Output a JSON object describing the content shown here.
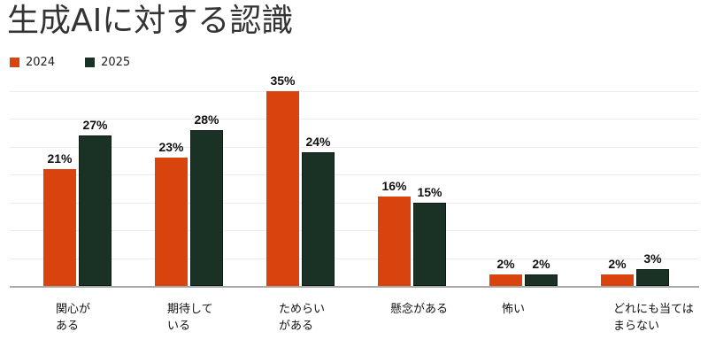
{
  "title": "生成AIに対する認識",
  "legend": [
    {
      "label": "2024",
      "color": "#d9430d"
    },
    {
      "label": "2025",
      "color": "#1a3226"
    }
  ],
  "chart_data": {
    "type": "bar",
    "title": "生成AIに対する認識",
    "xlabel": "",
    "ylabel": "",
    "ylim": [
      0,
      35
    ],
    "grid": true,
    "grid_step": 5,
    "legend_position": "top-left",
    "categories": [
      "関心がある",
      "期待している",
      "ためらいがある",
      "懸念がある",
      "怖い",
      "どれにも当てはまらない"
    ],
    "category_labels": [
      [
        "関心が",
        "ある"
      ],
      [
        "期待して",
        "いる"
      ],
      [
        "ためらい",
        "がある"
      ],
      [
        "懸念がある"
      ],
      [
        "怖い"
      ],
      [
        "どれにも当ては",
        "まらない"
      ]
    ],
    "series": [
      {
        "name": "2024",
        "color": "#d9430d",
        "values": [
          21,
          23,
          35,
          16,
          2,
          2
        ]
      },
      {
        "name": "2025",
        "color": "#1a3226",
        "values": [
          27,
          28,
          24,
          15,
          2,
          3
        ]
      }
    ],
    "value_suffix": "%"
  }
}
